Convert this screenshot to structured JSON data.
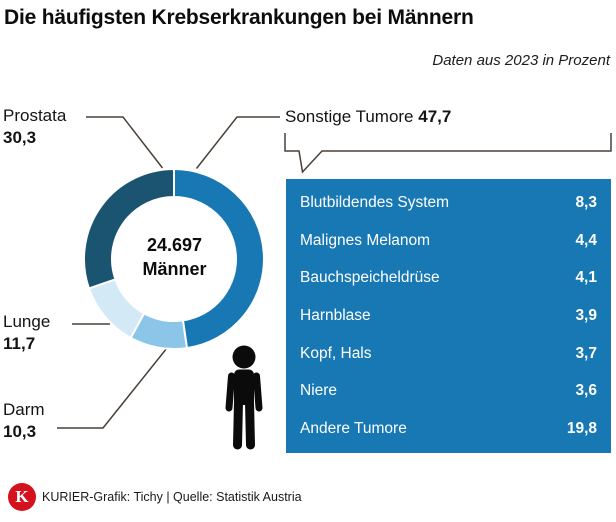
{
  "header": {
    "title": "Die häufigsten Krebserkrankungen bei Männern",
    "subtitle": "Daten aus 2023 in Prozent"
  },
  "donut": {
    "center_value": "24.697",
    "center_label": "Männer"
  },
  "callouts": {
    "prostata": {
      "label": "Prostata",
      "value": "30,3"
    },
    "lunge": {
      "label": "Lunge",
      "value": "11,7"
    },
    "darm": {
      "label": "Darm",
      "value": "10,3"
    },
    "sonstige": {
      "label": "Sonstige Tumore",
      "value": "47,7"
    }
  },
  "footer": {
    "logo_letter": "K",
    "text": "KURIER-Grafik: Tichy  | Quelle: Statistik Austria"
  },
  "colors": {
    "panel_blue": "#1878b4",
    "slice_dark": "#1a5470",
    "slice_light": "#d3e9f6",
    "slice_mid_light": "#8bc6e8",
    "leader_line": "#4a4038",
    "kurier_red": "#d6111e"
  },
  "chart_data": {
    "type": "pie",
    "subtype": "donut",
    "title": "Die häufigsten Krebserkrankungen bei Männern",
    "subtitle": "Daten aus 2023 in Prozent",
    "unit": "percent",
    "center_text": [
      "24.697",
      "Männer"
    ],
    "start_angle": "12 o'clock, clockwise",
    "slices": [
      {
        "label": "Sonstige Tumore",
        "value": 47.7,
        "color": "#1878b4"
      },
      {
        "label": "Darm",
        "value": 10.3,
        "color": "#8bc6e8"
      },
      {
        "label": "Lunge",
        "value": 11.7,
        "color": "#d3e9f6"
      },
      {
        "label": "Prostata",
        "value": 30.3,
        "color": "#1a5470"
      }
    ],
    "sonstige_breakdown": [
      {
        "label": "Blutbildendes System",
        "value": 8.3
      },
      {
        "label": "Malignes Melanom",
        "value": 4.4
      },
      {
        "label": "Bauchspeicheldrüse",
        "value": 4.1
      },
      {
        "label": "Harnblase",
        "value": 3.9
      },
      {
        "label": "Kopf, Hals",
        "value": 3.7
      },
      {
        "label": "Niere",
        "value": 3.6
      },
      {
        "label": "Andere Tumore",
        "value": 19.8
      }
    ]
  }
}
